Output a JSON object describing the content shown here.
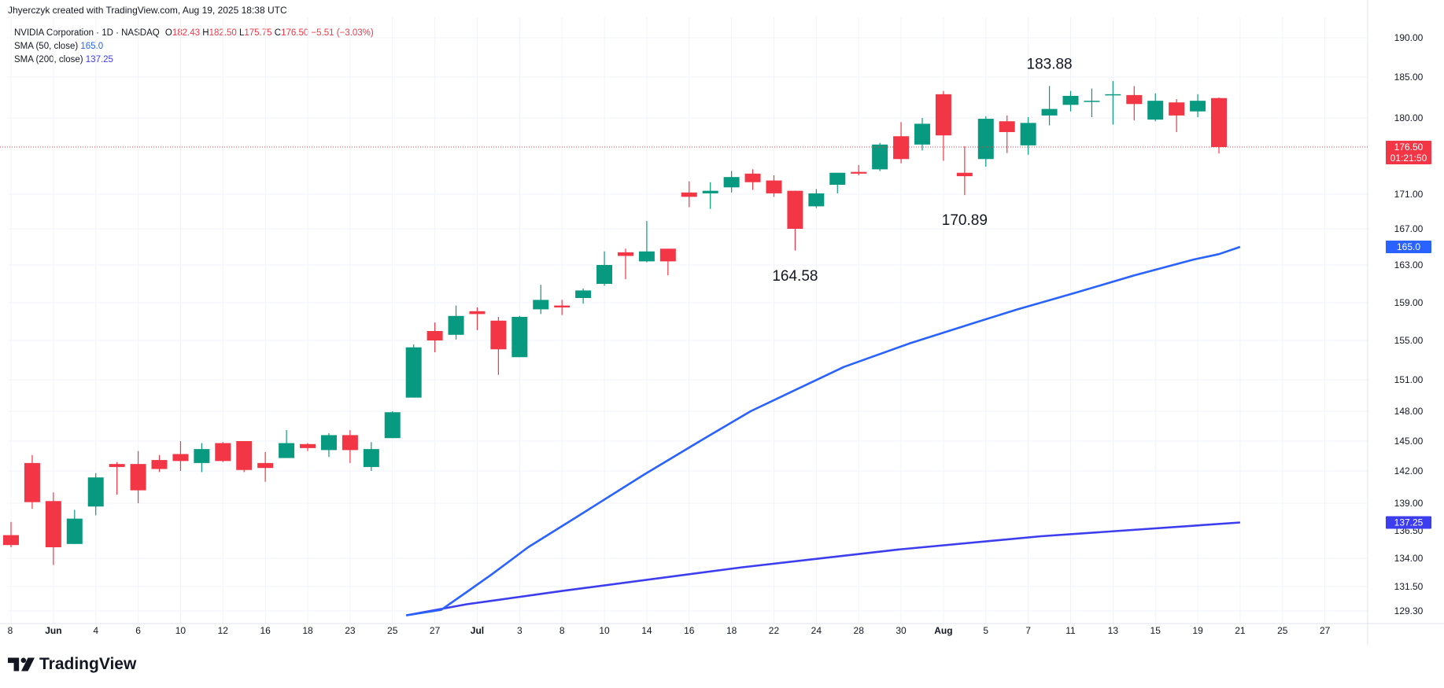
{
  "header": {
    "attribution": "Jhyerczyk created with TradingView.com, Aug 19, 2025 18:38 UTC"
  },
  "legend": {
    "symbol": "NVIDIA Corporation · 1D · NASDAQ",
    "ohlc": {
      "o_label": "O",
      "o": "182.43",
      "h_label": "H",
      "h": "182.50",
      "l_label": "L",
      "l": "175.75",
      "c_label": "C",
      "c": "176.50",
      "change": "−5.51 (−3.03%)"
    },
    "sma50": {
      "label": "SMA (50, close)",
      "value": "165.0"
    },
    "sma200": {
      "label": "SMA (200, close)",
      "value": "137.25"
    }
  },
  "brand": {
    "name": "TradingView"
  },
  "colors": {
    "up": "#089981",
    "down": "#f23645",
    "sma50": "#2962ff",
    "sma200": "#3d3df0",
    "grid": "#f0f3fa",
    "price_line": "#f23645"
  },
  "chart_data": {
    "type": "candlestick",
    "y_ticks": [
      190,
      185,
      180,
      176.5,
      171,
      167,
      163,
      159,
      155,
      151,
      148,
      145,
      142,
      139,
      136.5,
      134,
      131.5,
      129.3
    ],
    "y_tick_labels": [
      "190.00",
      "185.00",
      "180.00",
      "176.50",
      "171.00",
      "167.00",
      "163.00",
      "159.00",
      "155.00",
      "151.00",
      "148.00",
      "145.00",
      "142.00",
      "139.00",
      "136.50",
      "134.00",
      "131.50",
      "129.30"
    ],
    "x_tick_labels": [
      "8",
      "Jun",
      "4",
      "6",
      "10",
      "12",
      "16",
      "18",
      "23",
      "25",
      "27",
      "Jul",
      "3",
      "8",
      "10",
      "14",
      "16",
      "18",
      "22",
      "24",
      "28",
      "30",
      "Aug",
      "5",
      "7",
      "11",
      "13",
      "15",
      "19",
      "21",
      "25",
      "27"
    ],
    "x_tick_bold": [
      false,
      true,
      false,
      false,
      false,
      false,
      false,
      false,
      false,
      false,
      false,
      true,
      false,
      false,
      false,
      false,
      false,
      false,
      false,
      false,
      false,
      false,
      true,
      false,
      false,
      false,
      false,
      false,
      false,
      false,
      false,
      false
    ],
    "candles": [
      {
        "o": 136.1,
        "h": 137.3,
        "l": 135.0,
        "c": 135.2
      },
      {
        "o": 142.8,
        "h": 143.6,
        "l": 138.5,
        "c": 139.1
      },
      {
        "o": 139.2,
        "h": 140.0,
        "l": 133.4,
        "c": 135.0
      },
      {
        "o": 135.3,
        "h": 138.4,
        "l": 135.3,
        "c": 137.6
      },
      {
        "o": 138.7,
        "h": 141.8,
        "l": 137.9,
        "c": 141.4
      },
      {
        "o": 142.7,
        "h": 142.9,
        "l": 139.8,
        "c": 142.4
      },
      {
        "o": 142.7,
        "h": 144.0,
        "l": 139.0,
        "c": 140.2
      },
      {
        "o": 143.1,
        "h": 143.6,
        "l": 141.9,
        "c": 142.2
      },
      {
        "o": 143.7,
        "h": 145.0,
        "l": 142.0,
        "c": 143.0
      },
      {
        "o": 142.8,
        "h": 144.8,
        "l": 141.9,
        "c": 144.2
      },
      {
        "o": 144.8,
        "h": 144.9,
        "l": 142.9,
        "c": 143.0
      },
      {
        "o": 145.0,
        "h": 145.0,
        "l": 141.9,
        "c": 142.1
      },
      {
        "o": 142.8,
        "h": 143.9,
        "l": 141.0,
        "c": 142.3
      },
      {
        "o": 143.3,
        "h": 146.1,
        "l": 143.3,
        "c": 144.8
      },
      {
        "o": 144.7,
        "h": 144.8,
        "l": 144.0,
        "c": 144.3
      },
      {
        "o": 144.1,
        "h": 145.8,
        "l": 143.4,
        "c": 145.6
      },
      {
        "o": 145.6,
        "h": 146.1,
        "l": 142.8,
        "c": 144.1
      },
      {
        "o": 142.4,
        "h": 144.9,
        "l": 142.0,
        "c": 144.2
      },
      {
        "o": 145.3,
        "h": 148.0,
        "l": 145.3,
        "c": 147.9
      },
      {
        "o": 149.3,
        "h": 154.6,
        "l": 149.3,
        "c": 154.3
      },
      {
        "o": 156.0,
        "h": 156.9,
        "l": 153.8,
        "c": 155.0
      },
      {
        "o": 155.6,
        "h": 158.7,
        "l": 155.1,
        "c": 157.6
      },
      {
        "o": 158.1,
        "h": 158.5,
        "l": 156.1,
        "c": 157.8
      },
      {
        "o": 157.1,
        "h": 157.5,
        "l": 151.5,
        "c": 154.1
      },
      {
        "o": 153.3,
        "h": 157.6,
        "l": 153.3,
        "c": 157.5
      },
      {
        "o": 158.3,
        "h": 160.9,
        "l": 157.8,
        "c": 159.3
      },
      {
        "o": 158.7,
        "h": 159.3,
        "l": 157.7,
        "c": 158.5
      },
      {
        "o": 159.5,
        "h": 160.5,
        "l": 158.9,
        "c": 160.3
      },
      {
        "o": 161.0,
        "h": 164.5,
        "l": 160.8,
        "c": 163.0
      },
      {
        "o": 164.4,
        "h": 164.8,
        "l": 161.5,
        "c": 164.0
      },
      {
        "o": 163.4,
        "h": 167.9,
        "l": 163.3,
        "c": 164.5
      },
      {
        "o": 164.8,
        "h": 164.8,
        "l": 161.9,
        "c": 163.4
      },
      {
        "o": 171.2,
        "h": 172.5,
        "l": 169.5,
        "c": 170.7
      },
      {
        "o": 171.1,
        "h": 172.4,
        "l": 169.3,
        "c": 171.4
      },
      {
        "o": 171.8,
        "h": 173.7,
        "l": 171.2,
        "c": 173.0
      },
      {
        "o": 173.4,
        "h": 173.9,
        "l": 171.5,
        "c": 172.4
      },
      {
        "o": 172.6,
        "h": 173.2,
        "l": 170.7,
        "c": 171.1
      },
      {
        "o": 171.4,
        "h": 171.4,
        "l": 164.6,
        "c": 167.0
      },
      {
        "o": 169.6,
        "h": 171.6,
        "l": 169.4,
        "c": 171.1
      },
      {
        "o": 172.1,
        "h": 173.4,
        "l": 171.1,
        "c": 173.5
      },
      {
        "o": 173.6,
        "h": 174.4,
        "l": 173.2,
        "c": 173.4
      },
      {
        "o": 173.9,
        "h": 177.0,
        "l": 173.7,
        "c": 176.8
      },
      {
        "o": 177.8,
        "h": 179.5,
        "l": 174.6,
        "c": 175.1
      },
      {
        "o": 176.8,
        "h": 180.0,
        "l": 176.1,
        "c": 179.3
      },
      {
        "o": 182.9,
        "h": 183.3,
        "l": 174.9,
        "c": 177.9
      },
      {
        "o": 173.5,
        "h": 176.6,
        "l": 170.9,
        "c": 173.1
      },
      {
        "o": 175.1,
        "h": 180.2,
        "l": 174.2,
        "c": 179.9
      },
      {
        "o": 179.6,
        "h": 180.3,
        "l": 175.8,
        "c": 178.3
      },
      {
        "o": 176.7,
        "h": 180.1,
        "l": 175.6,
        "c": 179.4
      },
      {
        "o": 180.3,
        "h": 183.9,
        "l": 179.1,
        "c": 181.1
      },
      {
        "o": 181.6,
        "h": 183.3,
        "l": 180.8,
        "c": 182.7
      },
      {
        "o": 182.0,
        "h": 183.6,
        "l": 180.1,
        "c": 182.1
      },
      {
        "o": 182.9,
        "h": 184.5,
        "l": 179.2,
        "c": 182.9
      },
      {
        "o": 182.8,
        "h": 183.9,
        "l": 179.7,
        "c": 181.7
      },
      {
        "o": 179.8,
        "h": 183.0,
        "l": 179.6,
        "c": 182.1
      },
      {
        "o": 181.9,
        "h": 182.3,
        "l": 178.3,
        "c": 180.3
      },
      {
        "o": 180.8,
        "h": 182.9,
        "l": 180.1,
        "c": 182.1
      },
      {
        "o": 182.43,
        "h": 182.5,
        "l": 175.75,
        "c": 176.5
      }
    ],
    "sma50": [
      {
        "i": 18.65,
        "v": 128.9
      },
      {
        "i": 20.3,
        "v": 129.4
      },
      {
        "i": 21.5,
        "v": 131.0
      },
      {
        "i": 22.7,
        "v": 132.6
      },
      {
        "i": 24.4,
        "v": 135.0
      },
      {
        "i": 26.9,
        "v": 138.0
      },
      {
        "i": 29.9,
        "v": 141.7
      },
      {
        "i": 32.9,
        "v": 145.5
      },
      {
        "i": 34.9,
        "v": 148.0
      },
      {
        "i": 37.5,
        "v": 150.5
      },
      {
        "i": 39.3,
        "v": 152.3
      },
      {
        "i": 42.4,
        "v": 154.7
      },
      {
        "i": 45.5,
        "v": 156.9
      },
      {
        "i": 47.5,
        "v": 158.3
      },
      {
        "i": 50.3,
        "v": 160.1
      },
      {
        "i": 53.0,
        "v": 161.9
      },
      {
        "i": 55.8,
        "v": 163.6
      },
      {
        "i": 57.0,
        "v": 164.2
      },
      {
        "i": 58.0,
        "v": 165.0
      }
    ],
    "sma200": [
      {
        "i": 18.65,
        "v": 128.9
      },
      {
        "i": 21.5,
        "v": 129.9
      },
      {
        "i": 26.0,
        "v": 131.1
      },
      {
        "i": 34.5,
        "v": 133.2
      },
      {
        "i": 41.9,
        "v": 134.8
      },
      {
        "i": 48.6,
        "v": 136.0
      },
      {
        "i": 58.0,
        "v": 137.25
      }
    ],
    "annotations": [
      {
        "text": "183.88",
        "i": 49,
        "v": 183.88,
        "pos": "above"
      },
      {
        "text": "170.89",
        "i": 45,
        "v": 170.89,
        "pos": "below"
      },
      {
        "text": "164.58",
        "i": 37,
        "v": 164.58,
        "pos": "below"
      }
    ],
    "last_price": {
      "value": 176.5,
      "label": "176.50",
      "countdown": "01:21:50"
    },
    "sma50_badge": "165.0",
    "sma200_badge": "137.25"
  }
}
